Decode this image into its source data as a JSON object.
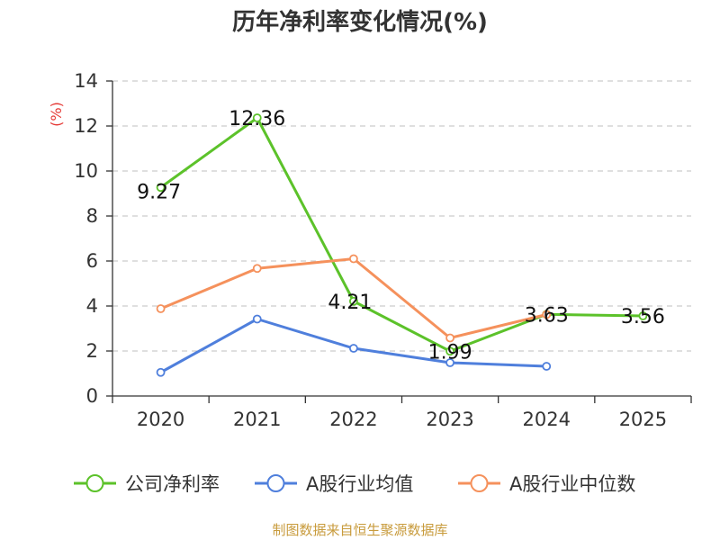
{
  "chart_data": {
    "type": "line",
    "title": "历年净利率变化情况(%)",
    "ylabel": "(%)",
    "xlabel": "",
    "ylim": [
      0,
      14
    ],
    "yticks": [
      0,
      2,
      4,
      6,
      8,
      10,
      12,
      14
    ],
    "categories": [
      "2020",
      "2021",
      "2022",
      "2023",
      "2024",
      "2025"
    ],
    "grid": true,
    "series": [
      {
        "name": "公司净利率",
        "color": "#5cc22a",
        "values": [
          9.27,
          12.36,
          4.21,
          1.99,
          3.63,
          3.56
        ],
        "labels": [
          "9.27",
          "12.36",
          "4.21",
          "1.99",
          "3.63",
          "3.56"
        ]
      },
      {
        "name": "A股行业均值",
        "color": "#4f7fdc",
        "values": [
          1.05,
          3.42,
          2.12,
          1.48,
          1.32,
          null
        ],
        "labels": []
      },
      {
        "name": "A股行业中位数",
        "color": "#f5915c",
        "values": [
          3.88,
          5.67,
          6.1,
          2.58,
          3.62,
          null
        ],
        "labels": []
      }
    ],
    "colors": {
      "ylabel": "#e53935",
      "source": "#c89b3c",
      "grid": "#cccccc",
      "axis": "#333333"
    }
  },
  "footer": {
    "source": "制图数据来自恒生聚源数据库"
  }
}
